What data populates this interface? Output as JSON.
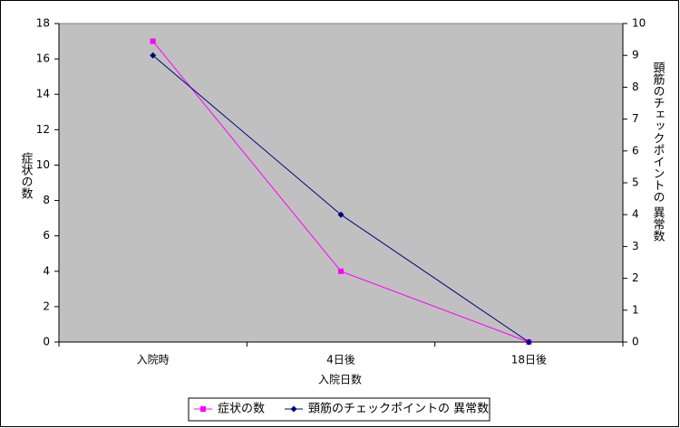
{
  "chart_data": {
    "type": "line",
    "categories": [
      "入院時",
      "4日後",
      "18日後"
    ],
    "series": [
      {
        "name": "症状の数",
        "color": "#ff00ff",
        "values": [
          17,
          4,
          0
        ]
      },
      {
        "name": "頸筋のチェックポイントの 異常数",
        "color": "#000080",
        "values": [
          9,
          4,
          0
        ],
        "axis": "y2"
      }
    ],
    "ylim": [
      0,
      18
    ],
    "yticks": [
      0,
      2,
      4,
      6,
      8,
      10,
      12,
      14,
      16,
      18
    ],
    "y2lim": [
      0,
      10
    ],
    "y2ticks": [
      0,
      1,
      2,
      3,
      4,
      5,
      6,
      7,
      8,
      9,
      10
    ],
    "xlabel": "入院日数",
    "ylabel": "症状の数",
    "y2label": "頸筋のチェックポイントの 異常数",
    "legend": "bottom"
  }
}
